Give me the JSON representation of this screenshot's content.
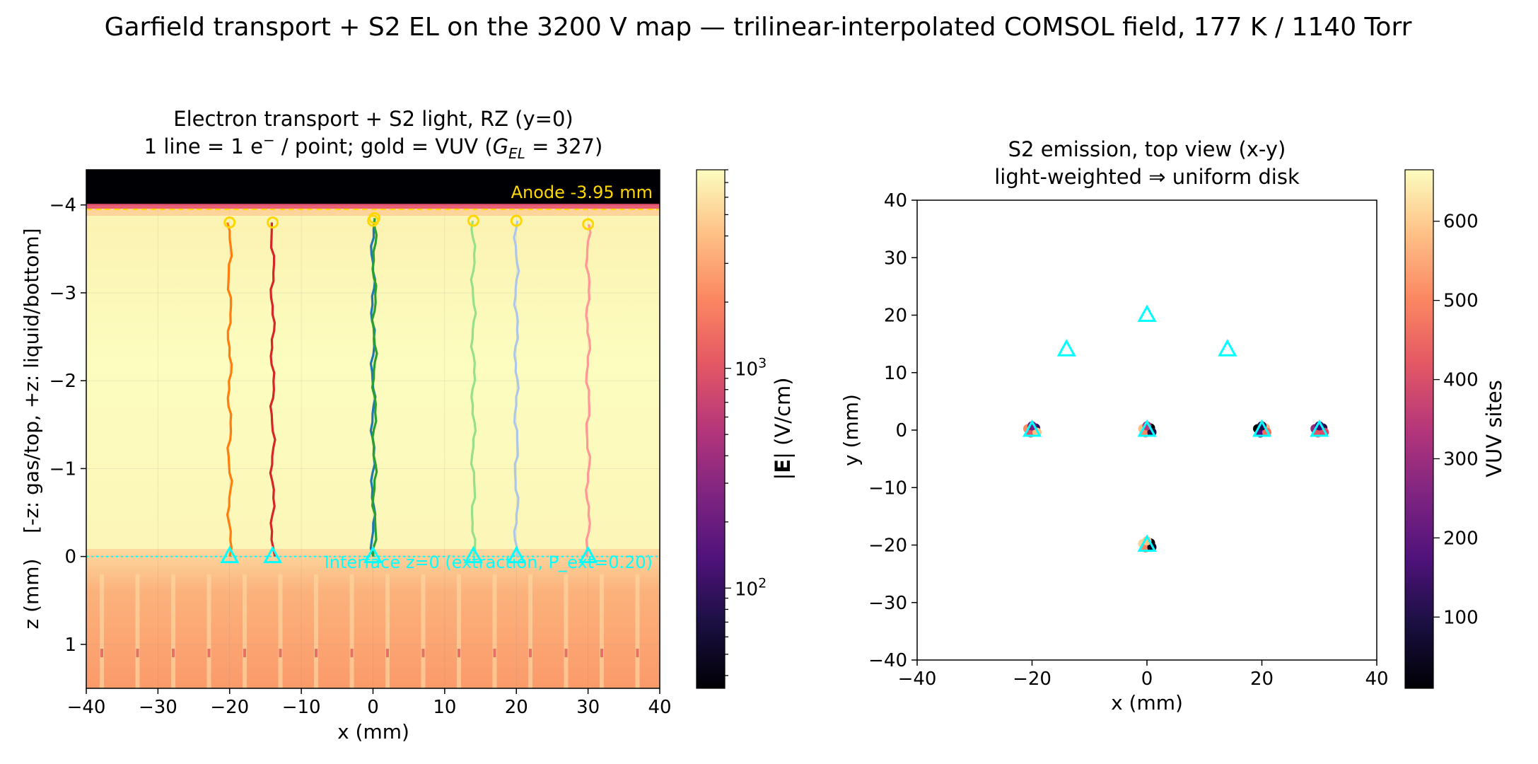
{
  "figure": {
    "suptitle": "Garfield transport + S2 EL on the 3200 V map — trilinear-interpolated COMSOL field, 177 K / 1140 Torr"
  },
  "colors": {
    "field_high": "#fcfdbf",
    "field_mid": "#fb8861",
    "anode_band": "#000004",
    "anode_text": "#ffd700",
    "interface": "#00ffff",
    "emission_marker": "#ffd700",
    "start_marker": "#00ffff"
  },
  "chart_data": [
    {
      "type": "line",
      "title_line1": "Electron transport + S2 light, RZ (y=0)",
      "title_line2_prefix": "1 line = 1 e",
      "title_line2_sup": "−",
      "title_line2_mid": " / point; gold = VUV (",
      "title_line2_G": "G",
      "title_line2_sub": "EL",
      "title_line2_val": " = 327)",
      "xlabel": "x (mm)",
      "ylabel": "z (mm)    [-z: gas/top, +z: liquid/bottom]",
      "xlim": [
        -40,
        40
      ],
      "ylim": [
        1.5,
        -4.4
      ],
      "x_ticks": [
        -40,
        -30,
        -20,
        -10,
        0,
        10,
        20,
        30,
        40
      ],
      "x_tick_labels": [
        "−40",
        "−30",
        "−20",
        "−10",
        "0",
        "10",
        "20",
        "30",
        "40"
      ],
      "y_ticks": [
        -4,
        -3,
        -2,
        -1,
        0,
        1
      ],
      "y_tick_labels": [
        "−4",
        "−3",
        "−2",
        "−1",
        "0",
        "1"
      ],
      "anode_label": "Anode -3.95 mm",
      "anode_z": -3.95,
      "interface_label": "Interface z=0 (extraction, P_ext=0.20)",
      "interface_z": 0,
      "colorbar": {
        "label_prefix": "|",
        "label_bold": "E",
        "label_suffix": "| (V/cm)",
        "scale": "log",
        "range": [
          35,
          8000
        ],
        "tick_values": [
          100,
          1000
        ],
        "tick_labels": [
          {
            "base": "10",
            "exp": "2"
          },
          {
            "base": "10",
            "exp": "3"
          }
        ]
      },
      "series": [
        {
          "x0": -20,
          "color": "#ff7f0e",
          "emission_z": -3.8
        },
        {
          "x0": -14,
          "color": "#d62728",
          "emission_z": -3.8
        },
        {
          "x0": 0,
          "color": "#1f77b4",
          "emission_z": -3.82
        },
        {
          "x0": 0.2,
          "color": "#2ca02c",
          "emission_z": -3.85
        },
        {
          "x0": 14,
          "color": "#98df8a",
          "emission_z": -3.82
        },
        {
          "x0": 20,
          "color": "#aec7e8",
          "emission_z": -3.82
        },
        {
          "x0": 30,
          "color": "#ff9896",
          "emission_z": -3.78
        }
      ]
    },
    {
      "type": "scatter",
      "title_line1": "S2 emission, top view (x-y)",
      "title_line2": "light-weighted ⇒ uniform disk",
      "xlabel": "x (mm)",
      "ylabel": "y (mm)",
      "xlim": [
        -40,
        40
      ],
      "ylim": [
        -40,
        40
      ],
      "x_ticks": [
        -40,
        -20,
        0,
        20,
        40
      ],
      "x_tick_labels": [
        "−40",
        "−20",
        "0",
        "20",
        "40"
      ],
      "y_ticks": [
        -40,
        -30,
        -20,
        -10,
        0,
        10,
        20,
        30,
        40
      ],
      "y_tick_labels": [
        "−40",
        "−30",
        "−20",
        "−10",
        "0",
        "10",
        "20",
        "30",
        "40"
      ],
      "start_points": [
        {
          "x": 0,
          "y": 20
        },
        {
          "x": -14,
          "y": 14
        },
        {
          "x": 14,
          "y": 14
        },
        {
          "x": -20,
          "y": 0
        },
        {
          "x": 0,
          "y": 0
        },
        {
          "x": 20,
          "y": 0
        },
        {
          "x": 30,
          "y": 0
        },
        {
          "x": 0,
          "y": -20
        }
      ],
      "emission_clusters": [
        {
          "x": -20,
          "y": 0,
          "colors": [
            "#fb8861",
            "#2c115f",
            "#e85362",
            "#fec287",
            "#721f81"
          ]
        },
        {
          "x": 0,
          "y": 0,
          "colors": [
            "#fec287",
            "#000004",
            "#fb8861",
            "#1d1147",
            "#b73779"
          ]
        },
        {
          "x": 20,
          "y": 0,
          "colors": [
            "#000004",
            "#fcb57e",
            "#51127c",
            "#f6705c",
            "#1d1147"
          ]
        },
        {
          "x": 30,
          "y": 0,
          "colors": [
            "#8c2981",
            "#1d1147",
            "#e85362",
            "#de4968",
            "#3b0f70"
          ]
        },
        {
          "x": 0,
          "y": -20,
          "colors": [
            "#fcd29a",
            "#000004",
            "#fb8861",
            "#0b0924",
            "#fec287"
          ]
        }
      ],
      "colorbar": {
        "label": "VUV sites",
        "range": [
          10,
          665
        ],
        "tick_values": [
          100,
          200,
          300,
          400,
          500,
          600
        ],
        "tick_labels": [
          "100",
          "200",
          "300",
          "400",
          "500",
          "600"
        ]
      }
    }
  ]
}
